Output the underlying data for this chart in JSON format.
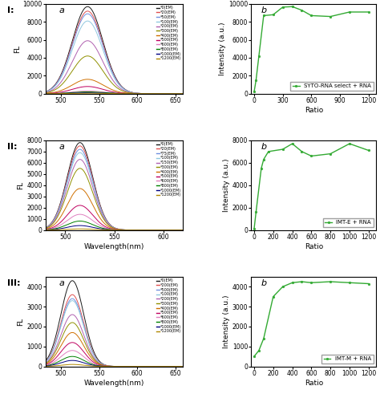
{
  "row1_a": {
    "ylabel": "FL",
    "xlim": [
      480,
      660
    ],
    "ylim": [
      0,
      10000
    ],
    "yticks": [
      0,
      2000,
      4000,
      6000,
      8000,
      10000
    ],
    "xticks": [
      500,
      550,
      600,
      650
    ],
    "peak_wl": 535,
    "sigma": 20,
    "peak_heights": [
      9700,
      9200,
      8900,
      8100,
      5900,
      4200,
      1600,
      800,
      300,
      200,
      100,
      50
    ],
    "colors": [
      "#1a1a1a",
      "#e05050",
      "#7090e0",
      "#90c8e0",
      "#b060b0",
      "#909000",
      "#d07000",
      "#c00060",
      "#e080c0",
      "#008000",
      "#000080",
      "#b08800"
    ],
    "legend_labels": [
      "*0(EM)",
      "*20(EM)",
      "*50(EM)",
      "*100(EM)",
      "*200(EM)",
      "*300(EM)",
      "*400(EM)",
      "*500(EM)",
      "*600(EM)",
      "*800(EM)",
      "*1000(EM)",
      "*1200(EM)"
    ]
  },
  "row1_b": {
    "xlabel": "Ratio",
    "ylabel": "Intensity (a.u.)",
    "xlim": [
      -30,
      1280
    ],
    "ylim": [
      0,
      10000
    ],
    "yticks": [
      0,
      2000,
      4000,
      6000,
      8000,
      10000
    ],
    "xticks": [
      0,
      300,
      600,
      900,
      1200
    ],
    "x_data": [
      0,
      20,
      50,
      100,
      200,
      300,
      400,
      500,
      600,
      800,
      1000,
      1200
    ],
    "y_data": [
      200,
      1500,
      4200,
      8700,
      8800,
      9650,
      9700,
      9300,
      8700,
      8600,
      9100,
      9100
    ],
    "legend_label": "SYTO-RNA select + RNA",
    "color": "#33aa33"
  },
  "row2_a": {
    "xlabel": "Wavelength(nm)",
    "ylabel": "FL",
    "xlim": [
      480,
      620
    ],
    "ylim": [
      0,
      8000
    ],
    "yticks": [
      0,
      1000,
      2000,
      3000,
      4000,
      5000,
      6000,
      7000,
      8000
    ],
    "xticks": [
      500,
      550,
      600
    ],
    "peak_wl": 515,
    "sigma": 13,
    "peak_heights": [
      7800,
      7500,
      7200,
      6900,
      6300,
      5500,
      3700,
      2200,
      1400,
      800,
      400,
      100
    ],
    "colors": [
      "#1a1a1a",
      "#e05050",
      "#7090e0",
      "#90c8e0",
      "#b060b0",
      "#909000",
      "#d07000",
      "#c00060",
      "#e080c0",
      "#008000",
      "#000080",
      "#b08800"
    ],
    "legend_labels": [
      "*0(EM)",
      "*20(EM)",
      "*75(EM)",
      "*100(EM)",
      "*150(EM)",
      "*300(EM)",
      "*400(EM)",
      "*500(EM)",
      "*600(EM)",
      "*800(EM)",
      "*1000(EM)",
      "*1200(EM)"
    ]
  },
  "row2_b": {
    "xlabel": "Ratio",
    "ylabel": "Intensity (a.u.)",
    "xlim": [
      -30,
      1280
    ],
    "ylim": [
      0,
      8000
    ],
    "yticks": [
      0,
      2000,
      4000,
      6000,
      8000
    ],
    "xticks": [
      0,
      200,
      400,
      600,
      800,
      1000,
      1200
    ],
    "x_data": [
      0,
      20,
      75,
      100,
      150,
      300,
      400,
      500,
      600,
      800,
      1000,
      1200
    ],
    "y_data": [
      100,
      1600,
      5500,
      6300,
      7000,
      7200,
      7700,
      7000,
      6600,
      6800,
      7700,
      7100
    ],
    "legend_label": "IMT-E + RNA",
    "color": "#33aa33"
  },
  "row3_a": {
    "xlabel": "Wavelength(nm)",
    "ylabel": "FL",
    "xlim": [
      480,
      660
    ],
    "ylim": [
      0,
      4500
    ],
    "yticks": [
      0,
      1000,
      2000,
      3000,
      4000
    ],
    "xticks": [
      500,
      550,
      600,
      650
    ],
    "peak_wl": 515,
    "sigma": 15,
    "peak_heights": [
      4300,
      3600,
      3400,
      3300,
      2600,
      2200,
      1700,
      1200,
      800,
      500,
      300,
      100
    ],
    "colors": [
      "#1a1a1a",
      "#e05050",
      "#7090e0",
      "#90c8e0",
      "#b060b0",
      "#909000",
      "#d07000",
      "#c00060",
      "#e080c0",
      "#008000",
      "#000080",
      "#b08800"
    ],
    "legend_labels": [
      "*0(EM)",
      "*200(EM)",
      "*500(EM)",
      "*100(EM)",
      "*200(EM)",
      "*300(EM)",
      "*400(EM)",
      "*500(EM)",
      "*600(EM)",
      "*800(EM)",
      "*1000(EM)",
      "*1200(EM)"
    ]
  },
  "row3_b": {
    "xlabel": "Ratio",
    "ylabel": "Intensity (a.u.)",
    "xlim": [
      -30,
      1280
    ],
    "ylim": [
      0,
      4500
    ],
    "yticks": [
      0,
      1000,
      2000,
      3000,
      4000
    ],
    "xticks": [
      0,
      200,
      400,
      600,
      800,
      1000,
      1200
    ],
    "x_data": [
      0,
      50,
      100,
      200,
      300,
      400,
      500,
      600,
      800,
      1000,
      1200
    ],
    "y_data": [
      500,
      800,
      1400,
      3500,
      4000,
      4200,
      4250,
      4200,
      4250,
      4200,
      4150
    ],
    "legend_label": "IMT-M + RNA",
    "color": "#33aa33"
  },
  "row_labels": [
    "I:",
    "II:",
    "III:"
  ],
  "bg_color": "#ffffff"
}
